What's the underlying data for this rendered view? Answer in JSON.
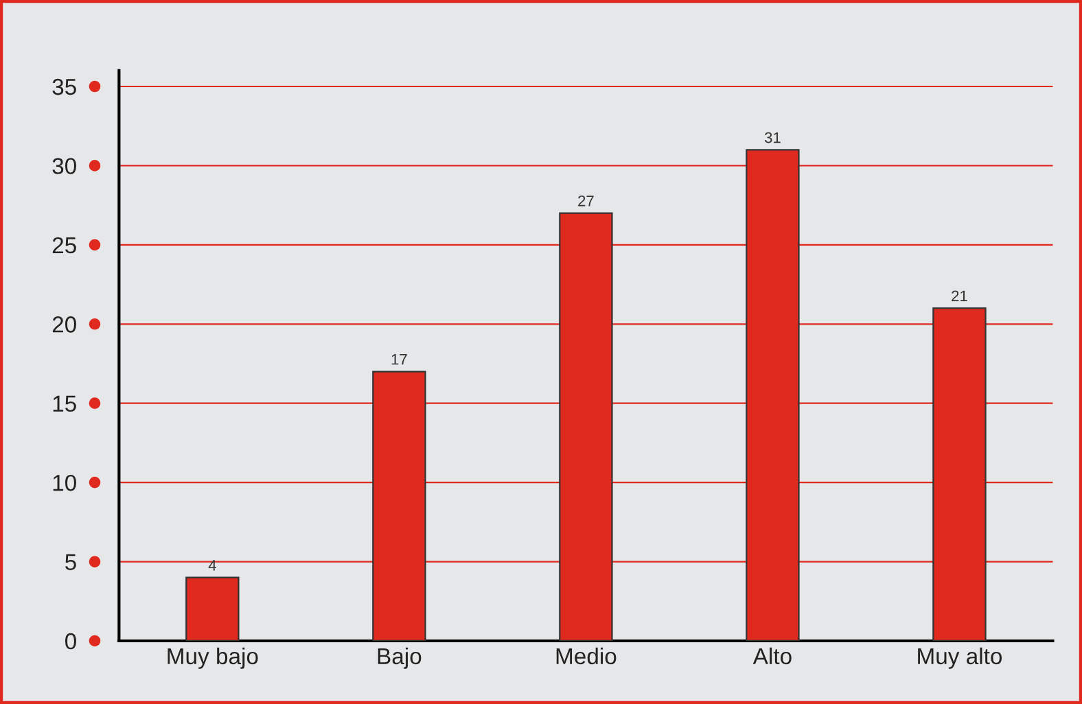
{
  "chart_data": {
    "type": "bar",
    "categories": [
      "Muy bajo",
      "Bajo",
      "Medio",
      "Alto",
      "Muy alto"
    ],
    "values": [
      4,
      17,
      27,
      31,
      21
    ],
    "color": "#e0291f",
    "ylim": [
      0,
      36
    ],
    "yticks": [
      0,
      5,
      10,
      15,
      20,
      25,
      30,
      35
    ],
    "grid": "y",
    "data_labels": true
  }
}
